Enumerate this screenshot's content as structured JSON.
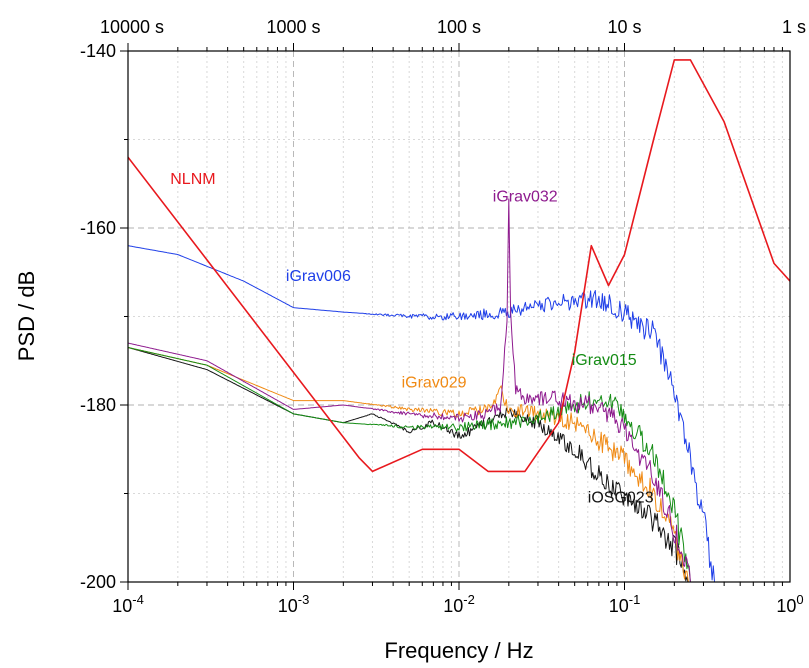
{
  "chart_data": {
    "type": "line",
    "xscale": "log",
    "xlabel": "Frequency / Hz",
    "ylabel": "PSD / dB",
    "xlim": [
      0.0001,
      1
    ],
    "ylim": [
      -200,
      -140
    ],
    "grid": true,
    "x_ticks": [
      {
        "value": 0.0001,
        "base": "10",
        "exp": "-4"
      },
      {
        "value": 0.001,
        "base": "10",
        "exp": "-3"
      },
      {
        "value": 0.01,
        "base": "10",
        "exp": "-2"
      },
      {
        "value": 0.1,
        "base": "10",
        "exp": "-1"
      },
      {
        "value": 1,
        "base": "10",
        "exp": "0"
      }
    ],
    "y_ticks": [
      {
        "value": -200,
        "label": "-200"
      },
      {
        "value": -180,
        "label": "-180"
      },
      {
        "value": -160,
        "label": "-160"
      },
      {
        "value": -140,
        "label": "-140"
      }
    ],
    "top_ticks": [
      {
        "value": 0.0001,
        "label": "10000 s"
      },
      {
        "value": 0.001,
        "label": "1000 s"
      },
      {
        "value": 0.01,
        "label": "100 s"
      },
      {
        "value": 0.1,
        "label": "10 s"
      },
      {
        "value": 1,
        "label": "1 s"
      }
    ],
    "series": [
      {
        "name": "NLNM",
        "color": "#e8191e",
        "label_at": [
          0.00018,
          -155
        ],
        "x": [
          0.0001,
          0.0025,
          0.003,
          0.006,
          0.01,
          0.015,
          0.025,
          0.04,
          0.05,
          0.063,
          0.08,
          0.1,
          0.15,
          0.2,
          0.25,
          0.4,
          0.8,
          1.0
        ],
        "y": [
          -152,
          -186,
          -187.5,
          -185,
          -185,
          -187.5,
          -187.5,
          -182,
          -174,
          -162,
          -166.5,
          -163,
          -150,
          -141,
          -141,
          -148,
          -164,
          -166
        ]
      },
      {
        "name": "iGrav006",
        "color": "#1f3fe8",
        "label_at": [
          0.0009,
          -166
        ],
        "x": [
          0.0001,
          0.0002,
          0.0005,
          0.001,
          0.002,
          0.005,
          0.01,
          0.02,
          0.04,
          0.07,
          0.1,
          0.15,
          0.2,
          0.25,
          0.3,
          0.35
        ],
        "y": [
          -162,
          -163,
          -166,
          -169,
          -169.5,
          -170,
          -170,
          -169.5,
          -168.5,
          -168,
          -169.5,
          -172,
          -178,
          -186,
          -193,
          -200
        ]
      },
      {
        "name": "iGrav032",
        "color": "#8e1a8e",
        "label_at": [
          0.016,
          -157
        ],
        "x": [
          0.0001,
          0.0003,
          0.001,
          0.002,
          0.005,
          0.01,
          0.015,
          0.018,
          0.0195,
          0.02,
          0.0205,
          0.022,
          0.025,
          0.035,
          0.05,
          0.07,
          0.1,
          0.15,
          0.2,
          0.25
        ],
        "y": [
          -173,
          -175,
          -180.5,
          -180,
          -181,
          -181.5,
          -181,
          -180,
          -170,
          -156.5,
          -170,
          -178,
          -179.5,
          -179,
          -180,
          -180,
          -183,
          -188,
          -194,
          -200
        ]
      },
      {
        "name": "iGrav029",
        "color": "#f08a14",
        "label_at": [
          0.0045,
          -178
        ],
        "x": [
          0.0001,
          0.0003,
          0.001,
          0.002,
          0.005,
          0.01,
          0.015,
          0.018,
          0.02,
          0.03,
          0.05,
          0.07,
          0.1,
          0.15,
          0.2,
          0.25
        ],
        "y": [
          -173.5,
          -175.5,
          -179.5,
          -179.5,
          -180.5,
          -181,
          -180.5,
          -178.5,
          -180.5,
          -181,
          -182,
          -184,
          -186,
          -190,
          -195,
          -200
        ]
      },
      {
        "name": "iGrav015",
        "color": "#148c14",
        "label_at": [
          0.048,
          -175.5
        ],
        "x": [
          0.0001,
          0.0003,
          0.001,
          0.002,
          0.005,
          0.01,
          0.02,
          0.03,
          0.05,
          0.07,
          0.1,
          0.15,
          0.2,
          0.25
        ],
        "y": [
          -173.5,
          -175.5,
          -181,
          -182,
          -182.5,
          -182.5,
          -182,
          -181.5,
          -180,
          -179,
          -181,
          -186,
          -192,
          -200
        ]
      },
      {
        "name": "iOSG023",
        "color": "#141414",
        "label_at": [
          0.06,
          -191
        ],
        "x": [
          0.0001,
          0.0003,
          0.001,
          0.002,
          0.003,
          0.005,
          0.007,
          0.01,
          0.015,
          0.02,
          0.03,
          0.05,
          0.07,
          0.1,
          0.15,
          0.2,
          0.25
        ],
        "y": [
          -173.5,
          -176,
          -181,
          -182,
          -181,
          -183,
          -182,
          -183.5,
          -182,
          -180.5,
          -182,
          -185,
          -188,
          -190.5,
          -193,
          -196,
          -200
        ]
      }
    ]
  }
}
